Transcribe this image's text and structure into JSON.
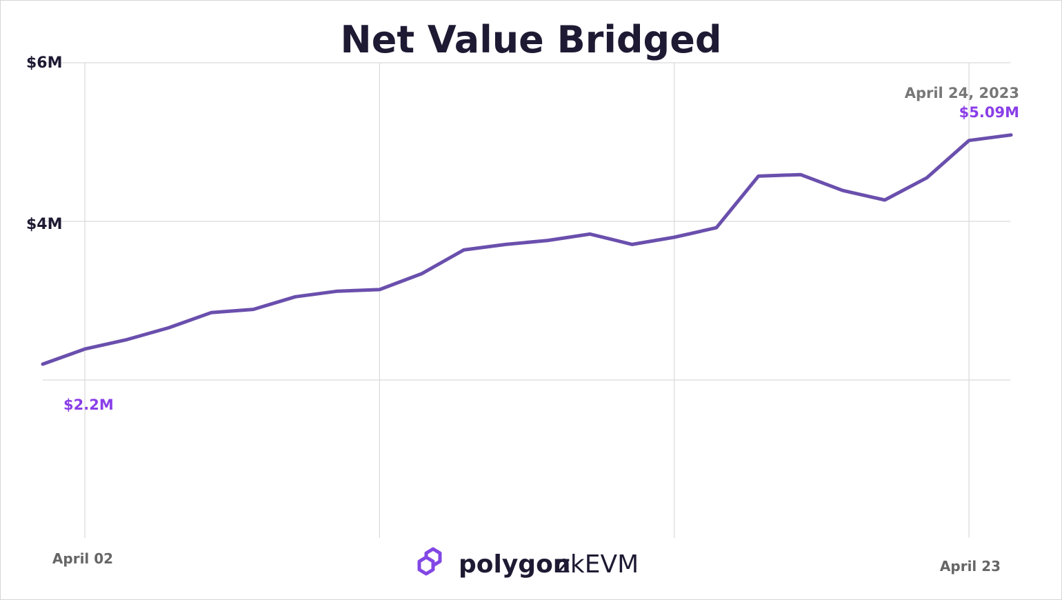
{
  "chart_data": {
    "type": "line",
    "title": "Net Value Bridged",
    "xlabel": "",
    "ylabel": "",
    "yticks": [
      "$6M",
      "$4M"
    ],
    "xticks": [
      "April 02",
      "April 23"
    ],
    "x": [
      "2023-04-01",
      "2023-04-02",
      "2023-04-03",
      "2023-04-04",
      "2023-04-05",
      "2023-04-06",
      "2023-04-07",
      "2023-04-08",
      "2023-04-09",
      "2023-04-10",
      "2023-04-11",
      "2023-04-12",
      "2023-04-13",
      "2023-04-14",
      "2023-04-15",
      "2023-04-16",
      "2023-04-17",
      "2023-04-18",
      "2023-04-19",
      "2023-04-20",
      "2023-04-21",
      "2023-04-22",
      "2023-04-23",
      "2023-04-24"
    ],
    "series": [
      {
        "color": "#6a4fad",
        "values": [
          2.2,
          2.39,
          2.51,
          2.66,
          2.85,
          2.89,
          3.05,
          3.12,
          3.14,
          3.34,
          3.64,
          3.71,
          3.76,
          3.84,
          3.71,
          3.8,
          3.92,
          4.57,
          4.59,
          4.39,
          4.27,
          4.55,
          5.02,
          5.09
        ]
      }
    ],
    "ylim": [
      0,
      6
    ],
    "grid": true,
    "annotations": {
      "start_value": "$2.2M",
      "end_date": "April 24, 2023",
      "end_value": "$5.09M",
      "value_color": "#8a3ee8",
      "date_color": "#777777"
    }
  },
  "brand": {
    "name": "polygon",
    "product": "zkEVM",
    "logo_color": "#8247e5",
    "text_color": "#1e1a33"
  }
}
